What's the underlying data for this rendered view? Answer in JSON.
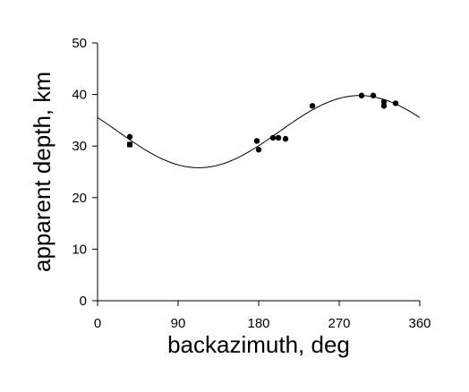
{
  "chart_data": {
    "type": "scatter",
    "title": "",
    "xlabel": "backazimuth, deg",
    "ylabel": "apparent depth, km",
    "xlim": [
      0,
      360
    ],
    "ylim": [
      0,
      50
    ],
    "xticks": [
      0,
      90,
      180,
      270,
      360
    ],
    "yticks": [
      0,
      10,
      20,
      30,
      40,
      50
    ],
    "grid": false,
    "legend": "none",
    "colors": {
      "points": "#000000",
      "curve": "#000000",
      "axes": "#000000"
    },
    "series": [
      {
        "kind": "points",
        "marker": "circle",
        "points": [
          {
            "x": 36,
            "y": 31.8
          },
          {
            "x": 178,
            "y": 31.0
          },
          {
            "x": 180,
            "y": 29.3
          },
          {
            "x": 196,
            "y": 31.6
          },
          {
            "x": 202,
            "y": 31.6
          },
          {
            "x": 210,
            "y": 31.4
          },
          {
            "x": 240,
            "y": 37.8
          },
          {
            "x": 295,
            "y": 39.8
          },
          {
            "x": 308,
            "y": 39.8
          },
          {
            "x": 320,
            "y": 38.6
          },
          {
            "x": 320,
            "y": 37.8
          },
          {
            "x": 333,
            "y": 38.3
          }
        ]
      },
      {
        "kind": "points",
        "marker": "square",
        "points": [
          {
            "x": 36,
            "y": 30.3
          }
        ]
      },
      {
        "kind": "curve",
        "style": "line",
        "mean": 32.8,
        "amplitude": 7.0,
        "phase_deg": 293,
        "range": [
          0,
          360
        ]
      }
    ]
  }
}
